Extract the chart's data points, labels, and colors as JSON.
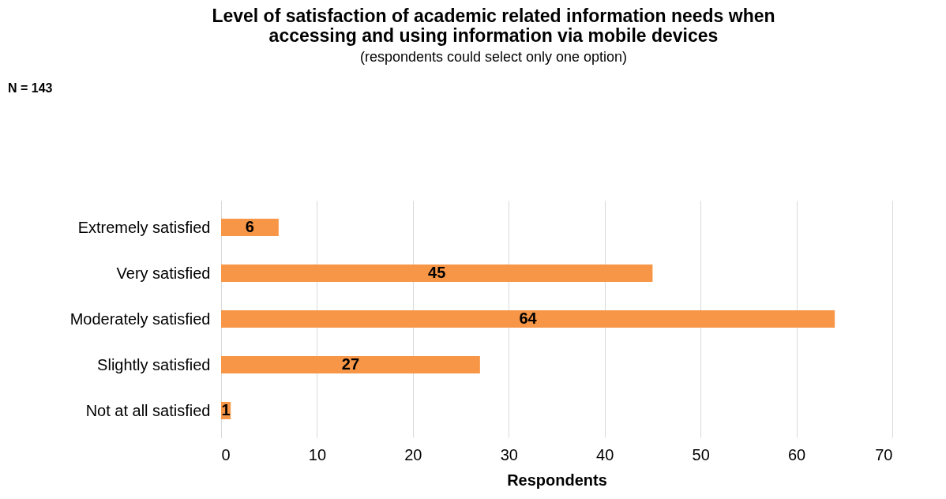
{
  "chart_data": {
    "type": "bar",
    "orientation": "horizontal",
    "title": "Level of satisfaction of academic related information needs when\naccessing and using information via mobile devices",
    "subtitle": "(respondents could select only one option)",
    "xlabel": "Respondents",
    "annotations": [
      "N = 143"
    ],
    "categories": [
      "Extremely satisfied",
      "Very satisfied",
      "Moderately satisfied",
      "Slightly satisfied",
      "Not at all satisfied"
    ],
    "values": [
      6,
      45,
      64,
      27,
      1
    ],
    "color": "#f79646",
    "xlim": [
      0,
      70
    ],
    "xticks": [
      0,
      10,
      20,
      30,
      40,
      50,
      60,
      70
    ],
    "grid": "x",
    "data_labels": true
  }
}
